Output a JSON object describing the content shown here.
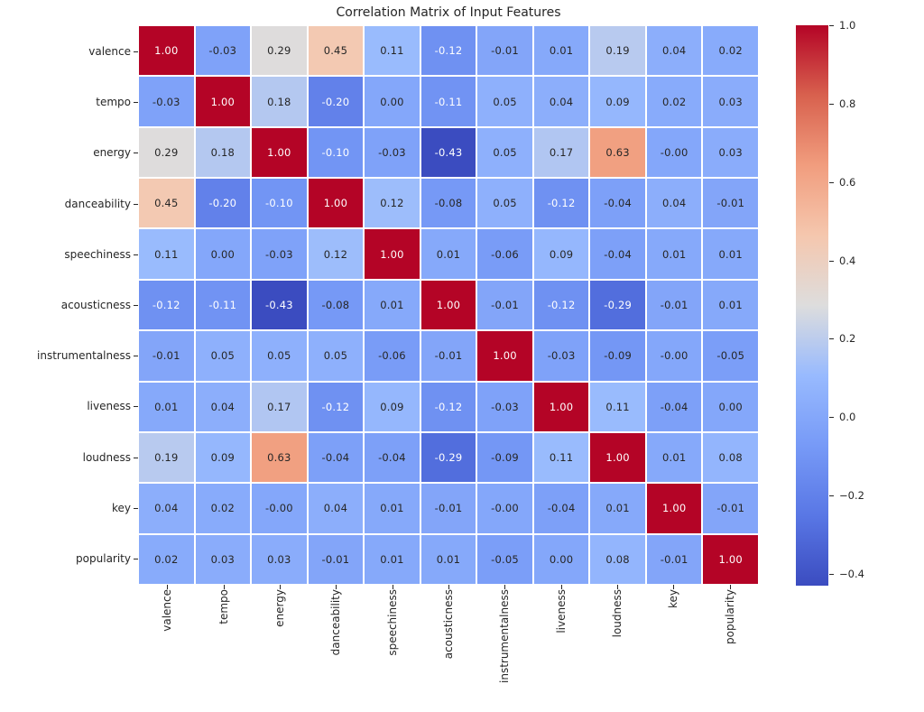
{
  "figure": {
    "background": "#ffffff"
  },
  "chart_data": {
    "type": "heatmap",
    "title": "Correlation Matrix of Input Features",
    "categories": [
      "valence",
      "tempo",
      "energy",
      "danceability",
      "speechiness",
      "acousticness",
      "instrumentalness",
      "liveness",
      "loudness",
      "key",
      "popularity"
    ],
    "matrix": [
      [
        "1.00",
        "-0.03",
        "0.29",
        "0.45",
        "0.11",
        "-0.12",
        "-0.01",
        "0.01",
        "0.19",
        "0.04",
        "0.02"
      ],
      [
        "-0.03",
        "1.00",
        "0.18",
        "-0.20",
        "0.00",
        "-0.11",
        "0.05",
        "0.04",
        "0.09",
        "0.02",
        "0.03"
      ],
      [
        "0.29",
        "0.18",
        "1.00",
        "-0.10",
        "-0.03",
        "-0.43",
        "0.05",
        "0.17",
        "0.63",
        "-0.00",
        "0.03"
      ],
      [
        "0.45",
        "-0.20",
        "-0.10",
        "1.00",
        "0.12",
        "-0.08",
        "0.05",
        "-0.12",
        "-0.04",
        "0.04",
        "-0.01"
      ],
      [
        "0.11",
        "0.00",
        "-0.03",
        "0.12",
        "1.00",
        "0.01",
        "-0.06",
        "0.09",
        "-0.04",
        "0.01",
        "0.01"
      ],
      [
        "-0.12",
        "-0.11",
        "-0.43",
        "-0.08",
        "0.01",
        "1.00",
        "-0.01",
        "-0.12",
        "-0.29",
        "-0.01",
        "0.01"
      ],
      [
        "-0.01",
        "0.05",
        "0.05",
        "0.05",
        "-0.06",
        "-0.01",
        "1.00",
        "-0.03",
        "-0.09",
        "-0.00",
        "-0.05"
      ],
      [
        "0.01",
        "0.04",
        "0.17",
        "-0.12",
        "0.09",
        "-0.12",
        "-0.03",
        "1.00",
        "0.11",
        "-0.04",
        "0.00"
      ],
      [
        "0.19",
        "0.09",
        "0.63",
        "-0.04",
        "-0.04",
        "-0.29",
        "-0.09",
        "0.11",
        "1.00",
        "0.01",
        "0.08"
      ],
      [
        "0.04",
        "0.02",
        "-0.00",
        "0.04",
        "0.01",
        "-0.01",
        "-0.00",
        "-0.04",
        "0.01",
        "1.00",
        "-0.01"
      ],
      [
        "0.02",
        "0.03",
        "0.03",
        "-0.01",
        "0.01",
        "0.01",
        "-0.05",
        "0.00",
        "0.08",
        "-0.01",
        "1.00"
      ]
    ],
    "vmin": -0.43,
    "vmax": 1.0,
    "grid": false,
    "legend_position": "right",
    "colormap": {
      "name": "coolwarm",
      "anchors": [
        [
          0.0,
          59,
          76,
          192
        ],
        [
          0.125,
          89,
          119,
          229
        ],
        [
          0.25,
          119,
          154,
          247
        ],
        [
          0.375,
          152,
          186,
          254
        ],
        [
          0.5,
          221,
          221,
          221
        ],
        [
          0.625,
          245,
          199,
          174
        ],
        [
          0.75,
          241,
          157,
          126
        ],
        [
          0.875,
          216,
          97,
          78
        ],
        [
          1.0,
          180,
          4,
          38
        ]
      ]
    },
    "colors": {
      "annot_light": "#ffffff",
      "annot_dark": "#262626",
      "axis_text": "#262626",
      "cell_min": "#3b4cc0",
      "cell_mid": "#dddddd",
      "cell_max": "#b40426"
    },
    "colorbar": {
      "ticks": [
        {
          "label": "1.0",
          "value": 1.0
        },
        {
          "label": "0.8",
          "value": 0.8
        },
        {
          "label": "0.6",
          "value": 0.6
        },
        {
          "label": "0.4",
          "value": 0.4
        },
        {
          "label": "0.2",
          "value": 0.2
        },
        {
          "label": "0.0",
          "value": 0.0
        },
        {
          "label": "−0.2",
          "value": -0.2
        },
        {
          "label": "−0.4",
          "value": -0.4
        }
      ]
    }
  }
}
